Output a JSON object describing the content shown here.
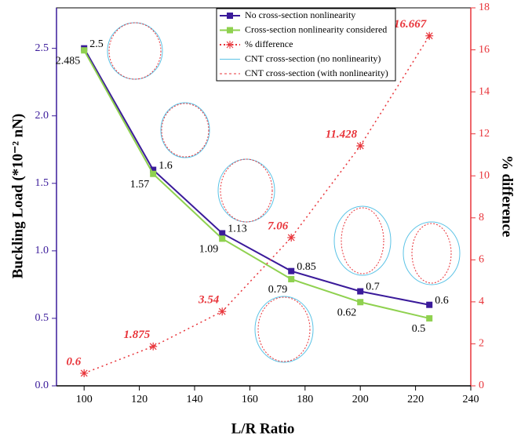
{
  "chart_data": {
    "type": "line",
    "x_label": "L/R Ratio",
    "y_label": "Buckling Load (*10⁻² nN)",
    "y2_label": "% difference",
    "x": [
      100,
      125,
      150,
      175,
      200,
      225
    ],
    "series": [
      {
        "name": "No cross-section nonlinearity",
        "color": "#3a1a9a",
        "marker": "square",
        "values": [
          2.5,
          1.6,
          1.13,
          0.85,
          0.7,
          0.6
        ]
      },
      {
        "name": "Cross-section nonlinearity considered",
        "color": "#8fd14f",
        "marker": "square",
        "values": [
          2.485,
          1.57,
          1.09,
          0.79,
          0.62,
          0.5
        ]
      },
      {
        "name": "% difference",
        "color": "#e8343a",
        "marker": "asterisk",
        "dotted": true,
        "axis": "y2",
        "values": [
          0.6,
          1.875,
          3.54,
          7.06,
          11.428,
          16.667
        ]
      }
    ],
    "legend_shapes": [
      {
        "name": "CNT cross-section (no nonlinearity)",
        "color": "#5bc3e6"
      },
      {
        "name": "CNT cross-section (with nonlinearity)",
        "color": "#e8343a"
      }
    ],
    "xlim": [
      90,
      240
    ],
    "xticks": [
      100,
      120,
      140,
      160,
      180,
      200,
      220,
      240
    ],
    "ylim": [
      0,
      2.8
    ],
    "yticks": [
      {
        "value": 0,
        "label": "0.0"
      },
      0.5,
      {
        "value": 1,
        "label": "1.0"
      },
      1.5,
      {
        "value": 2,
        "label": "2.0"
      },
      2.5
    ],
    "y2lim": [
      0,
      18
    ],
    "y2ticks": [
      0,
      2,
      4,
      6,
      8,
      10,
      12,
      14,
      16,
      18
    ],
    "left_axis_color": "#3a1a9a",
    "right_axis_color": "#e8343a"
  }
}
